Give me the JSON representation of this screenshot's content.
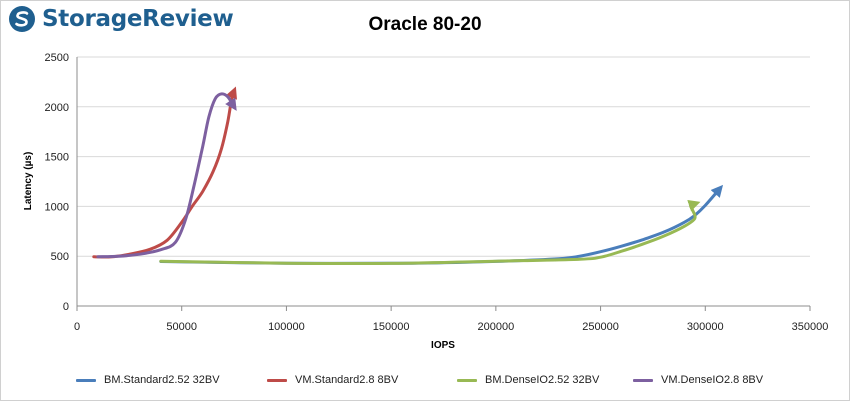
{
  "brand": {
    "logo_text": "StorageReview",
    "logo_color": "#1f5f8f"
  },
  "chart_data": {
    "type": "line",
    "title": "Oracle 80-20",
    "xlabel": "IOPS",
    "ylabel": "Latency (µs)",
    "xlim": [
      0,
      350000
    ],
    "ylim": [
      0,
      2500
    ],
    "xticks": [
      "0",
      "50000",
      "100000",
      "150000",
      "200000",
      "250000",
      "300000",
      "350000"
    ],
    "yticks": [
      "0",
      "500",
      "1000",
      "1500",
      "2000",
      "2500"
    ],
    "grid": "horizontal",
    "legend_position": "bottom",
    "series": [
      {
        "name": "BM.Standard2.52 32BV",
        "color": "#4a7ebb",
        "x": [
          40000,
          100000,
          160000,
          200000,
          230000,
          240000,
          250000,
          260000,
          270000,
          280000,
          290000,
          295000,
          300000,
          307000
        ],
        "y": [
          447,
          430,
          430,
          448,
          475,
          500,
          545,
          600,
          665,
          740,
          840,
          910,
          1010,
          1180
        ]
      },
      {
        "name": "VM.Standard2.8 8BV",
        "color": "#be4b48",
        "x": [
          8000,
          16000,
          25000,
          35000,
          43000,
          50000,
          55000,
          60000,
          65000,
          69000,
          72000,
          74000,
          75000
        ],
        "y": [
          495,
          493,
          520,
          570,
          660,
          840,
          1000,
          1150,
          1350,
          1580,
          1850,
          2100,
          2160
        ]
      },
      {
        "name": "BM.DenseIO2.52 32BV",
        "color": "#98b954",
        "x": [
          40000,
          100000,
          150000,
          200000,
          240000,
          250000,
          260000,
          270000,
          280000,
          290000,
          295000,
          294000,
          293000,
          295500
        ],
        "y": [
          450,
          430,
          428,
          450,
          470,
          490,
          550,
          620,
          700,
          800,
          880,
          960,
          1010,
          1030
        ]
      },
      {
        "name": "VM.DenseIO2.8 8BV",
        "color": "#7d60a0",
        "x": [
          10000,
          20000,
          30000,
          40000,
          47000,
          52000,
          56000,
          60000,
          63000,
          66000,
          69000,
          72000,
          75000
        ],
        "y": [
          495,
          500,
          520,
          565,
          640,
          880,
          1220,
          1600,
          1900,
          2080,
          2130,
          2100,
          2000
        ]
      }
    ]
  }
}
